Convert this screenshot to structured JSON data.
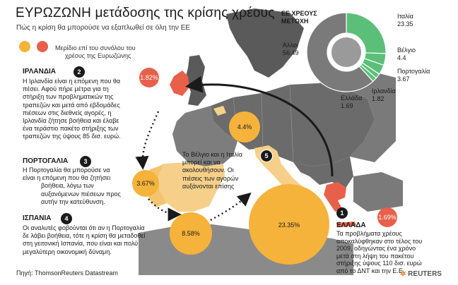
{
  "header": {
    "title": "ΕΥΡΩΖΩΝΗ μετάδοσης της κρίσης χρέους",
    "subtitle": "Πώς η κρίση θα μπορούσε να εξαπλωθεί σε όλη την ΕΕ"
  },
  "legend": {
    "note_line1": "Μερίδιο επί του συνόλου του",
    "note_line2": "χρέους της Ευρωζώνης",
    "colors": {
      "red": "#e8604a",
      "orange": "#f5b33b"
    }
  },
  "donut": {
    "title_line1": "ΕΕ ΧΡΕΟΥΣ",
    "title_line2": "ΜΕΤΟΧΗ",
    "other_label": "Άλλοι",
    "other_value": "56.49",
    "slices": [
      {
        "name": "Ιταλία",
        "value": 23.35,
        "value_text": "23.35"
      },
      {
        "name": "Βέλγιο",
        "value": 4.4,
        "value_text": "4.4"
      },
      {
        "name": "Πορτογαλία",
        "value": 3.67,
        "value_text": "3.67"
      },
      {
        "name": "Ιρλανδία",
        "value": 1.82,
        "value_text": "1.82"
      },
      {
        "name": "Ελλάδα",
        "value": 1.69,
        "value_text": "1.69"
      },
      {
        "name": "Άλλοι",
        "value": 56.49,
        "value_text": "56.49"
      }
    ],
    "colors": {
      "green": "#5bbf7a",
      "grey": "#7a7a7a"
    }
  },
  "steps": [
    {
      "number": "1",
      "heading": "ΕΛΛΑΔΑ",
      "lines": [
        "Τα προβλήματα χρέους",
        "αποκαλύφθηκαν στο τέλος του",
        "2009, οδηγώντας ένα χρόνο",
        "μετά στη λήψη του πακέτου",
        "στήριξης ύψους 110 δισ. ευρώ",
        "από το ΔΝΤ και την Ε.Ε."
      ],
      "share": "1.69%"
    },
    {
      "number": "2",
      "heading": "ΙΡΛΑΝΔΙΑ",
      "lines": [
        "Η Ιρλανδία είναι η επόμενη που θα",
        "πέσει. Αφού πήρε μέτρα για τη",
        "στήριξη των προβληματικών της",
        "τραπεζών και μετά από εβδομάδες",
        "πιέσεων στις διεθνείς αγορές, η",
        "Ιρλανδία ζήτησε βοήθεια και έλαβε",
        "ένα τεράστιο πακέτο στήριξης των",
        "τραπεζών της ύψους 85 δισ. ευρώ."
      ],
      "share": "1.82%"
    },
    {
      "number": "3",
      "heading": "ΠΟΡΤΟΓΑΛΙΑ",
      "lines": [
        "Η Πορτογαλία θα μπορούσε να",
        "είναι η επόμενη που θα ζητήσει",
        "βοήθεια, λόγω των",
        "αυξανόμενων πιέσεων προς",
        "αυτήν την κατεύθυνση."
      ],
      "share": "3.67%"
    },
    {
      "number": "4",
      "heading": "ΙΣΠΑΝΙΑ",
      "lines": [
        "Οι αναλυτές φοβούνται ότι αν η Πορτογαλία",
        "δε λάβει βοήθεια, τότε η κρίση θα μεταδοθεί",
        "στη γειτονική Ισπανία, που είναι και πολύ",
        "μεγαλύτερη οικονομική δύναμη."
      ],
      "share": "8.58%"
    },
    {
      "number": "5",
      "lines": [
        "Το Βέλγιο και η Ιταλία",
        "μπορεί και να",
        "ακολουθήσουν. Οι",
        "πιέσεις των αγορών",
        "αυξάνονται επίσης"
      ]
    }
  ],
  "map_bubbles": {
    "belgium": "4.4%",
    "italy": "23.35%"
  },
  "footer": {
    "source": "Πηγή: ThomsonReuters Datastream",
    "brand": "REUTERS"
  }
}
